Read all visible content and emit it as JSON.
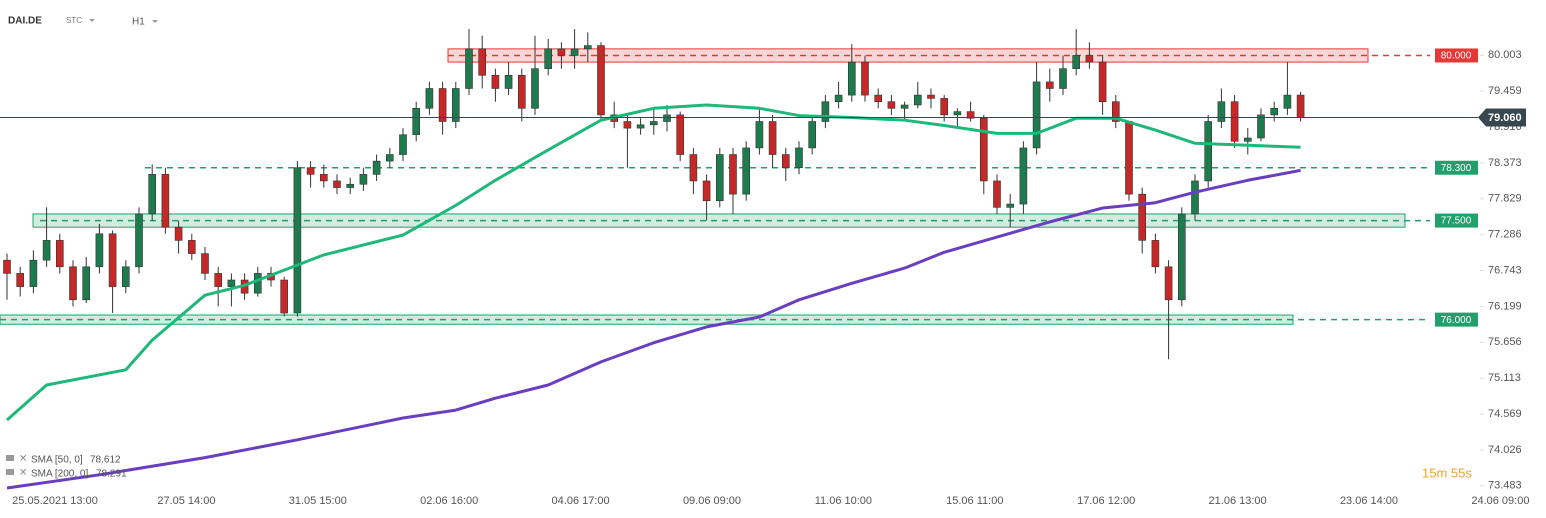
{
  "chart_data": {
    "type": "candlestick",
    "symbol": "DAI.DE",
    "market": "STC",
    "interval": "H1",
    "timer": "15m 55s",
    "up_color": "#1e7b4e",
    "down_color": "#c62828",
    "ylim": [
      73.42,
      80.84
    ],
    "xlim": [
      -0.53,
      111.44
    ],
    "yticks": [
      80.003,
      79.459,
      78.916,
      78.373,
      77.829,
      77.286,
      76.743,
      76.199,
      75.656,
      75.113,
      74.569,
      74.026,
      73.483
    ],
    "x_labels": [
      "25.05.2021 13:00",
      "27.05 14:00",
      "31.05 15:00",
      "02.06 16:00",
      "04.06 17:00",
      "09.06 09:00",
      "11.06 10:00",
      "15.06 11:00",
      "17.06 12:00",
      "21.06 13:00",
      "23.06 14:00",
      "24.06 09:00"
    ],
    "ohlc": [
      [
        76.9,
        77.0,
        76.3,
        76.7
      ],
      [
        76.7,
        76.8,
        76.35,
        76.5
      ],
      [
        76.5,
        77.05,
        76.4,
        76.9
      ],
      [
        76.9,
        77.7,
        76.8,
        77.2
      ],
      [
        77.2,
        77.3,
        76.7,
        76.8
      ],
      [
        76.8,
        76.9,
        76.2,
        76.3
      ],
      [
        76.3,
        76.95,
        76.25,
        76.8
      ],
      [
        76.8,
        77.45,
        76.7,
        77.3
      ],
      [
        77.3,
        77.35,
        76.1,
        76.5
      ],
      [
        76.5,
        76.9,
        76.4,
        76.8
      ],
      [
        76.8,
        77.7,
        76.7,
        77.6
      ],
      [
        77.6,
        78.35,
        77.5,
        78.2
      ],
      [
        78.2,
        78.3,
        77.3,
        77.4
      ],
      [
        77.4,
        77.5,
        77.0,
        77.2
      ],
      [
        77.2,
        77.3,
        76.9,
        77.0
      ],
      [
        77.0,
        77.1,
        76.6,
        76.7
      ],
      [
        76.7,
        76.8,
        76.2,
        76.5
      ],
      [
        76.5,
        76.7,
        76.2,
        76.6
      ],
      [
        76.6,
        76.7,
        76.3,
        76.4
      ],
      [
        76.4,
        76.8,
        76.35,
        76.7
      ],
      [
        76.7,
        76.8,
        76.5,
        76.6
      ],
      [
        76.6,
        76.65,
        76.05,
        76.1
      ],
      [
        76.1,
        78.4,
        76.05,
        78.3
      ],
      [
        78.3,
        78.4,
        78.0,
        78.2
      ],
      [
        78.2,
        78.35,
        78.0,
        78.1
      ],
      [
        78.1,
        78.2,
        77.9,
        78.0
      ],
      [
        78.0,
        78.15,
        77.9,
        78.05
      ],
      [
        78.05,
        78.3,
        77.95,
        78.2
      ],
      [
        78.2,
        78.5,
        78.1,
        78.4
      ],
      [
        78.4,
        78.6,
        78.3,
        78.5
      ],
      [
        78.5,
        78.9,
        78.4,
        78.8
      ],
      [
        78.8,
        79.3,
        78.7,
        79.2
      ],
      [
        79.2,
        79.6,
        79.1,
        79.5
      ],
      [
        79.5,
        79.6,
        78.8,
        79.0
      ],
      [
        79.0,
        79.6,
        78.9,
        79.5
      ],
      [
        79.5,
        80.4,
        79.4,
        80.1
      ],
      [
        80.1,
        80.3,
        79.5,
        79.7
      ],
      [
        79.7,
        79.8,
        79.3,
        79.5
      ],
      [
        79.5,
        79.9,
        79.4,
        79.7
      ],
      [
        79.7,
        79.8,
        79.0,
        79.2
      ],
      [
        79.2,
        80.3,
        79.1,
        79.8
      ],
      [
        79.8,
        80.25,
        79.7,
        80.1
      ],
      [
        80.1,
        80.2,
        79.8,
        80.0
      ],
      [
        80.0,
        80.4,
        79.8,
        80.1
      ],
      [
        80.1,
        80.35,
        79.9,
        80.15
      ],
      [
        80.15,
        80.2,
        79.0,
        79.1
      ],
      [
        79.1,
        79.3,
        78.9,
        79.0
      ],
      [
        79.0,
        79.1,
        78.3,
        78.9
      ],
      [
        78.9,
        79.05,
        78.8,
        78.95
      ],
      [
        78.95,
        79.2,
        78.8,
        79.0
      ],
      [
        79.0,
        79.25,
        78.85,
        79.1
      ],
      [
        79.1,
        79.15,
        78.4,
        78.5
      ],
      [
        78.5,
        78.6,
        77.9,
        78.1
      ],
      [
        78.1,
        78.2,
        77.5,
        77.8
      ],
      [
        77.8,
        78.6,
        77.7,
        78.5
      ],
      [
        78.5,
        78.6,
        77.6,
        77.9
      ],
      [
        77.9,
        78.7,
        77.8,
        78.6
      ],
      [
        78.6,
        79.2,
        78.5,
        79.0
      ],
      [
        79.0,
        79.1,
        78.3,
        78.5
      ],
      [
        78.5,
        78.6,
        78.1,
        78.3
      ],
      [
        78.3,
        78.7,
        78.2,
        78.6
      ],
      [
        78.6,
        79.1,
        78.5,
        79.0
      ],
      [
        79.0,
        79.4,
        78.9,
        79.3
      ],
      [
        79.3,
        79.6,
        79.2,
        79.4
      ],
      [
        79.4,
        80.17,
        79.3,
        79.9
      ],
      [
        79.9,
        80.0,
        79.3,
        79.4
      ],
      [
        79.4,
        79.5,
        79.2,
        79.3
      ],
      [
        79.3,
        79.4,
        79.1,
        79.2
      ],
      [
        79.2,
        79.3,
        79.0,
        79.25
      ],
      [
        79.25,
        79.6,
        79.2,
        79.4
      ],
      [
        79.4,
        79.5,
        79.2,
        79.35
      ],
      [
        79.35,
        79.4,
        79.0,
        79.1
      ],
      [
        79.1,
        79.2,
        78.9,
        79.15
      ],
      [
        79.15,
        79.3,
        79.0,
        79.05
      ],
      [
        79.05,
        79.1,
        77.9,
        78.1
      ],
      [
        78.1,
        78.2,
        77.6,
        77.7
      ],
      [
        77.7,
        77.9,
        77.4,
        77.75
      ],
      [
        77.75,
        78.7,
        77.6,
        78.6
      ],
      [
        78.6,
        79.9,
        78.5,
        79.6
      ],
      [
        79.6,
        79.8,
        79.3,
        79.5
      ],
      [
        79.5,
        80.0,
        79.4,
        79.8
      ],
      [
        79.8,
        80.4,
        79.7,
        80.0
      ],
      [
        80.0,
        80.2,
        79.8,
        79.9
      ],
      [
        79.9,
        80.0,
        79.1,
        79.3
      ],
      [
        79.3,
        79.4,
        78.9,
        79.0
      ],
      [
        79.0,
        79.0,
        77.8,
        77.9
      ],
      [
        77.9,
        78.0,
        77.0,
        77.2
      ],
      [
        77.2,
        77.3,
        76.7,
        76.8
      ],
      [
        76.8,
        76.9,
        75.4,
        76.3
      ],
      [
        76.3,
        77.7,
        76.2,
        77.6
      ],
      [
        77.6,
        78.2,
        77.5,
        78.1
      ],
      [
        78.1,
        79.1,
        78.0,
        79.0
      ],
      [
        79.0,
        79.5,
        78.9,
        79.3
      ],
      [
        79.3,
        79.4,
        78.6,
        78.7
      ],
      [
        78.7,
        78.9,
        78.5,
        78.75
      ],
      [
        78.75,
        79.2,
        78.7,
        79.1
      ],
      [
        79.1,
        79.3,
        79.0,
        79.2
      ],
      [
        79.2,
        79.9,
        79.1,
        79.4
      ],
      [
        79.4,
        79.45,
        79.0,
        79.06
      ]
    ],
    "series": [
      {
        "name": "SMA [50, 0]",
        "last": 78.612,
        "color": "#1db87a",
        "x": [
          0,
          3,
          9,
          11,
          15,
          18,
          21,
          24,
          30,
          34,
          37,
          41,
          45,
          49,
          53,
          57,
          60,
          64,
          68,
          71,
          75,
          78,
          81,
          84,
          87,
          90,
          94,
          98
        ],
        "values": [
          74.48,
          75.01,
          75.24,
          75.69,
          76.37,
          76.52,
          76.75,
          76.98,
          77.28,
          77.73,
          78.11,
          78.57,
          79.02,
          79.2,
          79.25,
          79.2,
          79.09,
          79.06,
          79.02,
          78.94,
          78.82,
          78.82,
          79.05,
          79.05,
          78.87,
          78.67,
          78.64,
          78.61
        ]
      },
      {
        "name": "SMA [200, 0]",
        "last": 78.291,
        "color": "#6a3fbf",
        "x": [
          0,
          7,
          15,
          22,
          30,
          34,
          37,
          41,
          45,
          49,
          53,
          57,
          60,
          64,
          68,
          71,
          75,
          79,
          83,
          87,
          90,
          94,
          98
        ],
        "values": [
          73.45,
          73.65,
          73.91,
          74.18,
          74.51,
          74.63,
          74.81,
          75.01,
          75.36,
          75.65,
          75.89,
          76.04,
          76.3,
          76.55,
          76.78,
          77.02,
          77.25,
          77.48,
          77.69,
          77.77,
          77.93,
          78.11,
          78.26
        ]
      }
    ],
    "levels": [
      {
        "value": 80,
        "label": "80.000",
        "color": "#e53935",
        "zone": [
          79.9,
          80.1
        ]
      },
      {
        "value": 78.3,
        "label": "78.300",
        "color": "#22a06b"
      },
      {
        "value": 77.5,
        "label": "77.500",
        "color": "#22a06b",
        "zone": [
          77.4,
          77.6
        ]
      },
      {
        "value": 76,
        "label": "76.000",
        "color": "#22a06b",
        "zone": [
          75.93,
          76.07
        ]
      }
    ],
    "last_price": {
      "value": 79.06,
      "label": "79.060",
      "color": "#37474f"
    }
  }
}
